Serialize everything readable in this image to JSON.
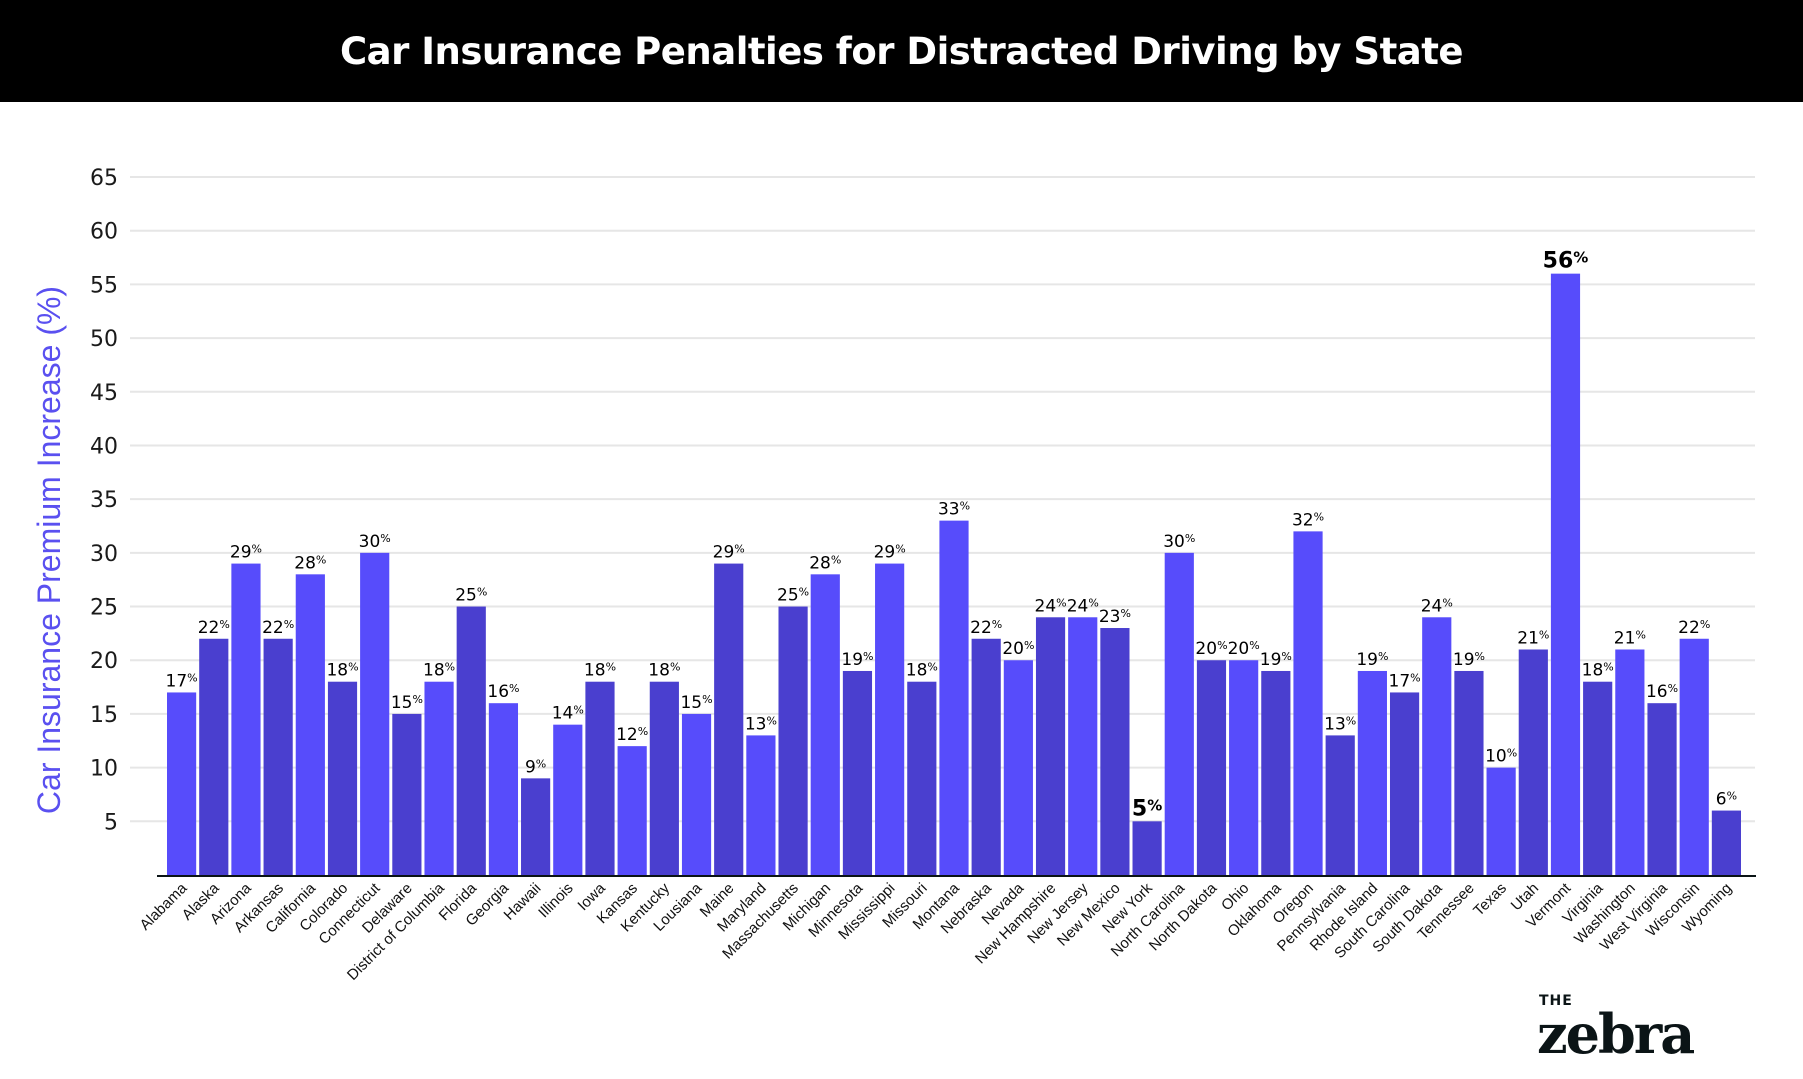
{
  "header": {
    "title": "Car Insurance Penalties for Distracted Driving by State"
  },
  "brand": {
    "the": "THE",
    "name": "zebra"
  },
  "colors": {
    "bar_light": "#574CFB",
    "bar_dark": "#4A3FCF",
    "axis_label": "#5A50F0",
    "grid": "#e6e6e6",
    "title_bg": "#000000"
  },
  "chart_data": {
    "type": "bar",
    "title": "Car Insurance Penalties for Distracted Driving by State",
    "xlabel": "",
    "ylabel": "Car Insurance Premium Increase (%)",
    "ylim": [
      0,
      65
    ],
    "yticks": [
      5,
      10,
      15,
      20,
      25,
      30,
      35,
      40,
      45,
      50,
      55,
      60,
      65
    ],
    "grid": true,
    "legend": "none",
    "value_suffix": "%",
    "highlighted": [
      "New York",
      "Vermont"
    ],
    "categories": [
      "Alabama",
      "Alaska",
      "Arizona",
      "Arkansas",
      "California",
      "Colorado",
      "Connecticut",
      "Delaware",
      "District of Columbia",
      "Florida",
      "Georgia",
      "Hawaii",
      "Illinois",
      "Iowa",
      "Kansas",
      "Kentucky",
      "Lousiana",
      "Maine",
      "Maryland",
      "Massachusetts",
      "Michigan",
      "Minnesota",
      "Mississippi",
      "Missouri",
      "Montana",
      "Nebraska",
      "Nevada",
      "New Hampshire",
      "New Jersey",
      "New Mexico",
      "New York",
      "North Carolina",
      "North Dakota",
      "Ohio",
      "Oklahoma",
      "Oregon",
      "Pennsylvania",
      "Rhode Island",
      "South Carolina",
      "South Dakota",
      "Tennessee",
      "Texas",
      "Utah",
      "Vermont",
      "Virginia",
      "Washington",
      "West Virginia",
      "Wisconsin",
      "Wyoming"
    ],
    "values": [
      17,
      22,
      29,
      22,
      28,
      18,
      30,
      15,
      18,
      25,
      16,
      9,
      14,
      18,
      12,
      18,
      15,
      29,
      13,
      25,
      28,
      19,
      29,
      18,
      33,
      22,
      20,
      24,
      24,
      23,
      5,
      30,
      20,
      20,
      19,
      32,
      13,
      19,
      17,
      24,
      19,
      10,
      21,
      56,
      18,
      21,
      16,
      22,
      6
    ],
    "bar_shades": [
      "light",
      "dark",
      "light",
      "dark",
      "light",
      "dark",
      "light",
      "dark",
      "light",
      "dark",
      "light",
      "dark",
      "light",
      "dark",
      "light",
      "dark",
      "light",
      "dark",
      "light",
      "dark",
      "light",
      "dark",
      "light",
      "dark",
      "light",
      "dark",
      "light",
      "dark",
      "light",
      "dark",
      "dark",
      "light",
      "dark",
      "light",
      "dark",
      "light",
      "dark",
      "light",
      "dark",
      "light",
      "dark",
      "light",
      "dark",
      "light",
      "dark",
      "light",
      "dark",
      "light",
      "dark"
    ]
  }
}
